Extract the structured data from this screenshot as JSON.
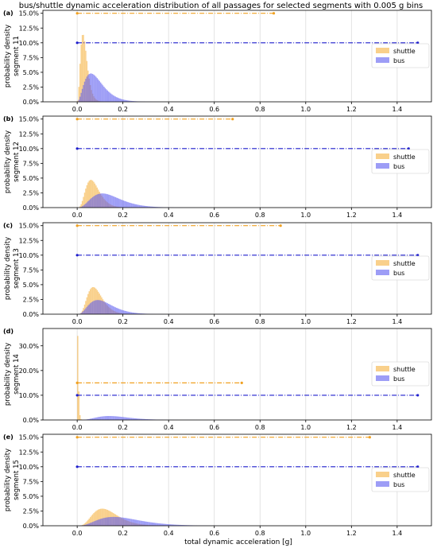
{
  "figure": {
    "title": "bus/shuttle dynamic acceleration distribution of all passages for selected segments with 0.005 g bins",
    "xlabel": "total dynamic acceleration [g]",
    "ylabel_prefix": "probability density"
  },
  "colors": {
    "shuttle": "#f5b13d",
    "bus": "#5b5bf0",
    "shuttle_range": "#f0a020",
    "bus_range": "#1c1ccc",
    "grid": "#dddddd",
    "axis": "#000000"
  },
  "chart_data": [
    {
      "type": "bar",
      "panel": "(a)",
      "ylabel": "segment 11",
      "xlim": [
        -0.15,
        1.55
      ],
      "ylim": [
        0,
        15.5
      ],
      "xticks": [
        0.0,
        0.2,
        0.4,
        0.6,
        0.8,
        1.0,
        1.2,
        1.4
      ],
      "yticks": [
        0,
        2.5,
        5.0,
        7.5,
        10.0,
        12.5,
        15.0
      ],
      "ytick_labels": [
        "0.0%",
        "2.5%",
        "5.0%",
        "7.5%",
        "10.0%",
        "12.5%",
        "15.0%"
      ],
      "legend": [
        "shuttle",
        "bus"
      ],
      "legend_position": "right",
      "grid": true,
      "series": [
        {
          "name": "shuttle",
          "peak_x": 0.025,
          "peak_y": 11.5,
          "shape_k": 3.0
        },
        {
          "name": "bus",
          "peak_x": 0.06,
          "peak_y": 4.8,
          "shape_k": 2.2
        }
      ],
      "ranges": [
        {
          "name": "shuttle",
          "y": 15.0,
          "x_min": 0.0,
          "x_max": 0.86
        },
        {
          "name": "bus",
          "y": 10.0,
          "x_min": 0.0,
          "x_max": 1.49
        }
      ]
    },
    {
      "type": "bar",
      "panel": "(b)",
      "ylabel": "segment 12",
      "xlim": [
        -0.15,
        1.55
      ],
      "ylim": [
        0,
        15.5
      ],
      "xticks": [
        0.0,
        0.2,
        0.4,
        0.6,
        0.8,
        1.0,
        1.2,
        1.4
      ],
      "yticks": [
        0,
        2.5,
        5.0,
        7.5,
        10.0,
        12.5,
        15.0
      ],
      "ytick_labels": [
        "0.0%",
        "2.5%",
        "5.0%",
        "7.5%",
        "10.0%",
        "12.5%",
        "15.0%"
      ],
      "legend": [
        "shuttle",
        "bus"
      ],
      "legend_position": "right",
      "grid": true,
      "series": [
        {
          "name": "shuttle",
          "peak_x": 0.06,
          "peak_y": 4.7,
          "shape_k": 4.0
        },
        {
          "name": "bus",
          "peak_x": 0.11,
          "peak_y": 2.4,
          "shape_k": 3.0
        }
      ],
      "ranges": [
        {
          "name": "shuttle",
          "y": 15.0,
          "x_min": 0.0,
          "x_max": 0.68
        },
        {
          "name": "bus",
          "y": 10.0,
          "x_min": 0.0,
          "x_max": 1.45
        }
      ]
    },
    {
      "type": "bar",
      "panel": "(c)",
      "ylabel": "segment 13",
      "xlim": [
        -0.15,
        1.55
      ],
      "ylim": [
        0,
        15.5
      ],
      "xticks": [
        0.0,
        0.2,
        0.4,
        0.6,
        0.8,
        1.0,
        1.2,
        1.4
      ],
      "yticks": [
        0,
        2.5,
        5.0,
        7.5,
        10.0,
        12.5,
        15.0
      ],
      "ytick_labels": [
        "0.0%",
        "2.5%",
        "5.0%",
        "7.5%",
        "10.0%",
        "12.5%",
        "15.0%"
      ],
      "legend": [
        "shuttle",
        "bus"
      ],
      "legend_position": "right",
      "grid": true,
      "series": [
        {
          "name": "shuttle",
          "peak_x": 0.07,
          "peak_y": 4.6,
          "shape_k": 4.5
        },
        {
          "name": "bus",
          "peak_x": 0.09,
          "peak_y": 2.4,
          "shape_k": 3.0
        }
      ],
      "ranges": [
        {
          "name": "shuttle",
          "y": 15.0,
          "x_min": 0.0,
          "x_max": 0.89
        },
        {
          "name": "bus",
          "y": 10.0,
          "x_min": 0.0,
          "x_max": 1.49
        }
      ]
    },
    {
      "type": "bar",
      "panel": "(d)",
      "ylabel": "segment 14",
      "xlim": [
        -0.15,
        1.55
      ],
      "ylim": [
        0,
        37
      ],
      "xticks": [
        0.0,
        0.2,
        0.4,
        0.6,
        0.8,
        1.0,
        1.2,
        1.4
      ],
      "yticks": [
        0,
        10,
        20,
        30
      ],
      "ytick_labels": [
        "0.0%",
        "10.0%",
        "20.0%",
        "30.0%"
      ],
      "legend": [
        "shuttle",
        "bus"
      ],
      "legend_position": "right",
      "grid": true,
      "series": [
        {
          "name": "shuttle",
          "peak_x": 0.0025,
          "peak_y": 34.0,
          "shape_k": 1.2
        },
        {
          "name": "bus",
          "peak_x": 0.14,
          "peak_y": 1.6,
          "shape_k": 4.0
        }
      ],
      "ranges": [
        {
          "name": "shuttle",
          "y": 15.0,
          "x_min": 0.0,
          "x_max": 0.72
        },
        {
          "name": "bus",
          "y": 10.0,
          "x_min": 0.0,
          "x_max": 1.49
        }
      ]
    },
    {
      "type": "bar",
      "panel": "(e)",
      "ylabel": "segment 15",
      "xlim": [
        -0.15,
        1.55
      ],
      "ylim": [
        0,
        15.5
      ],
      "xticks": [
        0.0,
        0.2,
        0.4,
        0.6,
        0.8,
        1.0,
        1.2,
        1.4
      ],
      "yticks": [
        0,
        2.5,
        5.0,
        7.5,
        10.0,
        12.5,
        15.0
      ],
      "ytick_labels": [
        "0.0%",
        "2.5%",
        "5.0%",
        "7.5%",
        "10.0%",
        "12.5%",
        "15.0%"
      ],
      "legend": [
        "shuttle",
        "bus"
      ],
      "legend_position": "right",
      "grid": true,
      "series": [
        {
          "name": "shuttle",
          "peak_x": 0.11,
          "peak_y": 2.9,
          "shape_k": 4.0
        },
        {
          "name": "bus",
          "peak_x": 0.16,
          "peak_y": 1.5,
          "shape_k": 3.0
        }
      ],
      "ranges": [
        {
          "name": "shuttle",
          "y": 15.0,
          "x_min": 0.0,
          "x_max": 1.28
        },
        {
          "name": "bus",
          "y": 10.0,
          "x_min": 0.0,
          "x_max": 1.49
        }
      ]
    }
  ]
}
